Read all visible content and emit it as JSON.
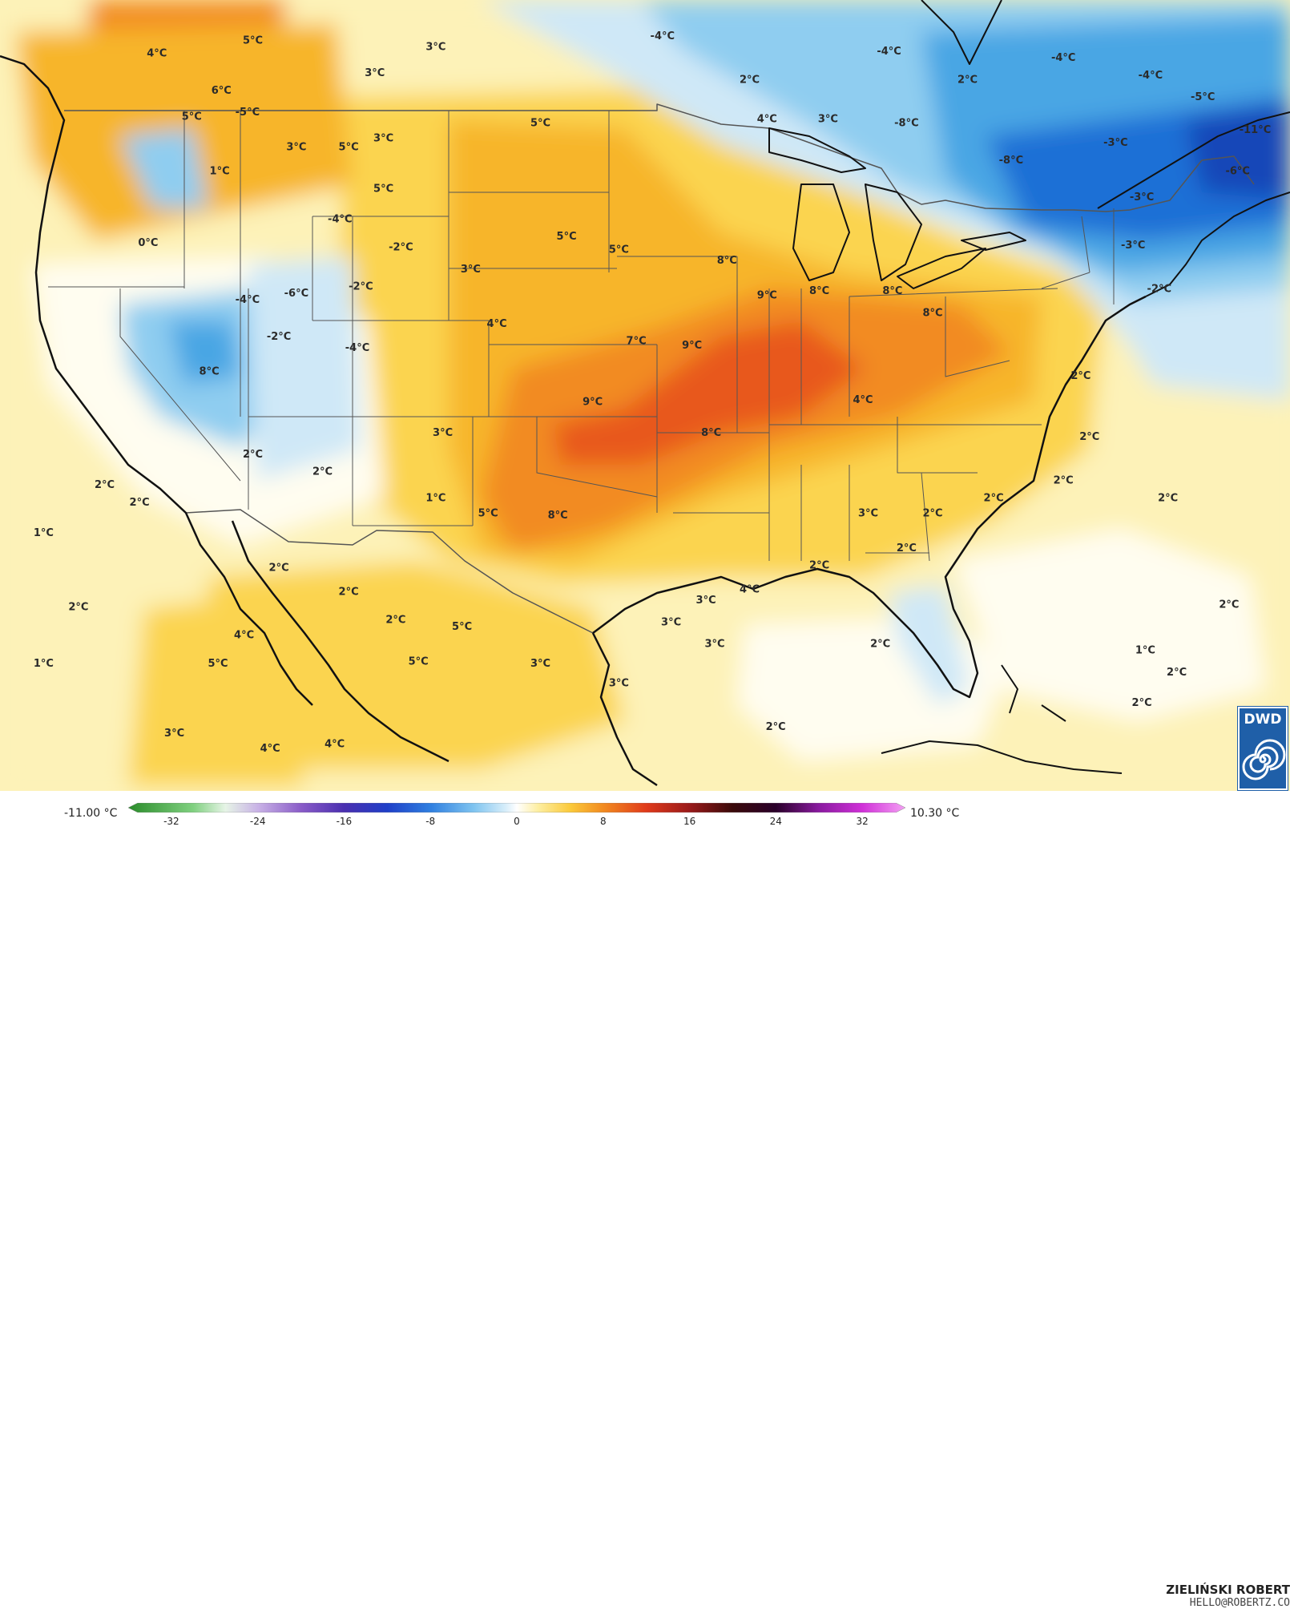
{
  "map": {
    "colors": {
      "base": "#fdf2b8",
      "pale": "#fffdf0",
      "light_yellow": "#fde88a",
      "yellow": "#fbd44f",
      "amber": "#f7b52c",
      "orange": "#f28b20",
      "red_orange": "#e8591a",
      "pale_blue": "#cfe8f7",
      "light_blue": "#8fcdf0",
      "blue": "#4aa6e4",
      "deep_blue": "#1f6fd6",
      "navy": "#1246b8",
      "coast": "#111111",
      "border": "#555555"
    },
    "labels": [
      {
        "text": "5°C",
        "lon": -117.5,
        "lat": 48.8
      },
      {
        "text": "4°C",
        "lon": -123.0,
        "lat": 48.2
      },
      {
        "text": "3°C",
        "lon": -107.0,
        "lat": 48.5
      },
      {
        "text": "-4°C",
        "lon": -94.0,
        "lat": 49.0
      },
      {
        "text": "-4°C",
        "lon": -81.0,
        "lat": 48.3
      },
      {
        "text": "-4°C",
        "lon": -71.0,
        "lat": 48.0
      },
      {
        "text": "3°C",
        "lon": -110.5,
        "lat": 47.3
      },
      {
        "text": "2°C",
        "lon": -89.0,
        "lat": 47.0
      },
      {
        "text": "2°C",
        "lon": -76.5,
        "lat": 47.0
      },
      {
        "text": "-4°C",
        "lon": -66.0,
        "lat": 47.2
      },
      {
        "text": "-5°C",
        "lon": -63.0,
        "lat": 46.2
      },
      {
        "text": "6°C",
        "lon": -119.3,
        "lat": 46.5
      },
      {
        "text": "5°C",
        "lon": -121.0,
        "lat": 45.3
      },
      {
        "text": "-5°C",
        "lon": -117.8,
        "lat": 45.5
      },
      {
        "text": "5°C",
        "lon": -101.0,
        "lat": 45.0
      },
      {
        "text": "4°C",
        "lon": -88.0,
        "lat": 45.2
      },
      {
        "text": "3°C",
        "lon": -84.5,
        "lat": 45.2
      },
      {
        "text": "-8°C",
        "lon": -80.0,
        "lat": 45.0
      },
      {
        "text": "-11°C",
        "lon": -60.0,
        "lat": 44.7
      },
      {
        "text": "3°C",
        "lon": -110.0,
        "lat": 44.3
      },
      {
        "text": "3°C",
        "lon": -115.0,
        "lat": 43.9
      },
      {
        "text": "5°C",
        "lon": -112.0,
        "lat": 43.9
      },
      {
        "text": "-8°C",
        "lon": -74.0,
        "lat": 43.3
      },
      {
        "text": "-3°C",
        "lon": -68.0,
        "lat": 44.1
      },
      {
        "text": "-6°C",
        "lon": -61.0,
        "lat": 42.8
      },
      {
        "text": "1°C",
        "lon": -119.4,
        "lat": 42.8
      },
      {
        "text": "5°C",
        "lon": -110.0,
        "lat": 42.0
      },
      {
        "text": "-3°C",
        "lon": -66.5,
        "lat": 41.6
      },
      {
        "text": "-4°C",
        "lon": -112.5,
        "lat": 40.6
      },
      {
        "text": "0°C",
        "lon": -123.5,
        "lat": 39.5
      },
      {
        "text": "5°C",
        "lon": -99.5,
        "lat": 39.8
      },
      {
        "text": "5°C",
        "lon": -96.5,
        "lat": 39.2
      },
      {
        "text": "-2°C",
        "lon": -109.0,
        "lat": 39.3
      },
      {
        "text": "8°C",
        "lon": -90.3,
        "lat": 38.7
      },
      {
        "text": "-3°C",
        "lon": -67.0,
        "lat": 39.4
      },
      {
        "text": "3°C",
        "lon": -105.0,
        "lat": 38.3
      },
      {
        "text": "-2°C",
        "lon": -111.3,
        "lat": 37.5
      },
      {
        "text": "-4°C",
        "lon": -117.8,
        "lat": 36.9
      },
      {
        "text": "-6°C",
        "lon": -115.0,
        "lat": 37.2
      },
      {
        "text": "9°C",
        "lon": -88.0,
        "lat": 37.1
      },
      {
        "text": "8°C",
        "lon": -85.0,
        "lat": 37.3
      },
      {
        "text": "8°C",
        "lon": -80.8,
        "lat": 37.3
      },
      {
        "text": "-2°C",
        "lon": -65.5,
        "lat": 37.4
      },
      {
        "text": "8°C",
        "lon": -78.5,
        "lat": 36.3
      },
      {
        "text": "4°C",
        "lon": -103.5,
        "lat": 35.8
      },
      {
        "text": "7°C",
        "lon": -95.5,
        "lat": 35.0
      },
      {
        "text": "9°C",
        "lon": -92.3,
        "lat": 34.8
      },
      {
        "text": "-2°C",
        "lon": -116.0,
        "lat": 35.2
      },
      {
        "text": "-4°C",
        "lon": -111.5,
        "lat": 34.7
      },
      {
        "text": "8°C",
        "lon": -120.0,
        "lat": 33.6
      },
      {
        "text": "2°C",
        "lon": -70.0,
        "lat": 33.4
      },
      {
        "text": "9°C",
        "lon": -98.0,
        "lat": 32.2
      },
      {
        "text": "4°C",
        "lon": -82.5,
        "lat": 32.3
      },
      {
        "text": "3°C",
        "lon": -106.6,
        "lat": 30.8
      },
      {
        "text": "8°C",
        "lon": -91.2,
        "lat": 30.8
      },
      {
        "text": "2°C",
        "lon": -69.5,
        "lat": 30.6
      },
      {
        "text": "2°C",
        "lon": -117.5,
        "lat": 29.8
      },
      {
        "text": "2°C",
        "lon": -113.5,
        "lat": 29.0
      },
      {
        "text": "2°C",
        "lon": -126.0,
        "lat": 28.4
      },
      {
        "text": "2°C",
        "lon": -124.0,
        "lat": 27.6
      },
      {
        "text": "1°C",
        "lon": -107.0,
        "lat": 27.8
      },
      {
        "text": "5°C",
        "lon": -104.0,
        "lat": 27.1
      },
      {
        "text": "8°C",
        "lon": -100.0,
        "lat": 27.0
      },
      {
        "text": "2°C",
        "lon": -71.0,
        "lat": 28.6
      },
      {
        "text": "2°C",
        "lon": -75.0,
        "lat": 27.8
      },
      {
        "text": "2°C",
        "lon": -78.5,
        "lat": 27.1
      },
      {
        "text": "2°C",
        "lon": -65.0,
        "lat": 27.8
      },
      {
        "text": "3°C",
        "lon": -82.2,
        "lat": 27.1
      },
      {
        "text": "1°C",
        "lon": -129.5,
        "lat": 26.2
      },
      {
        "text": "2°C",
        "lon": -116.0,
        "lat": 24.6
      },
      {
        "text": "2°C",
        "lon": -85.0,
        "lat": 24.7
      },
      {
        "text": "2°C",
        "lon": -80.0,
        "lat": 25.5
      },
      {
        "text": "4°C",
        "lon": -89.0,
        "lat": 23.6
      },
      {
        "text": "3°C",
        "lon": -91.5,
        "lat": 23.1
      },
      {
        "text": "2°C",
        "lon": -127.5,
        "lat": 22.8
      },
      {
        "text": "2°C",
        "lon": -112.0,
        "lat": 23.5
      },
      {
        "text": "2°C",
        "lon": -61.5,
        "lat": 22.9
      },
      {
        "text": "4°C",
        "lon": -118.0,
        "lat": 21.5
      },
      {
        "text": "2°C",
        "lon": -109.3,
        "lat": 22.2
      },
      {
        "text": "3°C",
        "lon": -93.5,
        "lat": 22.1
      },
      {
        "text": "3°C",
        "lon": -91.0,
        "lat": 21.1
      },
      {
        "text": "5°C",
        "lon": -105.5,
        "lat": 21.9
      },
      {
        "text": "2°C",
        "lon": -81.5,
        "lat": 21.1
      },
      {
        "text": "5°C",
        "lon": -119.5,
        "lat": 20.2
      },
      {
        "text": "5°C",
        "lon": -108.0,
        "lat": 20.3
      },
      {
        "text": "3°C",
        "lon": -101.0,
        "lat": 20.2
      },
      {
        "text": "1°C",
        "lon": -129.5,
        "lat": 20.2
      },
      {
        "text": "3°C",
        "lon": -96.5,
        "lat": 19.3
      },
      {
        "text": "1°C",
        "lon": -66.3,
        "lat": 20.8
      },
      {
        "text": "2°C",
        "lon": -64.5,
        "lat": 19.8
      },
      {
        "text": "2°C",
        "lon": -66.5,
        "lat": 18.4
      },
      {
        "text": "3°C",
        "lon": -122.0,
        "lat": 17.0
      },
      {
        "text": "2°C",
        "lon": -87.5,
        "lat": 17.3
      },
      {
        "text": "4°C",
        "lon": -116.5,
        "lat": 16.3
      },
      {
        "text": "4°C",
        "lon": -112.8,
        "lat": 16.5
      }
    ]
  },
  "legend": {
    "min_label": "-11.00 °C",
    "max_label": "10.30 °C",
    "ticks": [
      "-32",
      "-24",
      "-16",
      "-8",
      "0",
      "8",
      "16",
      "24",
      "32"
    ],
    "tick_values": [
      -32,
      -24,
      -16,
      -8,
      0,
      8,
      16,
      24,
      32
    ],
    "range": [
      -36,
      36
    ],
    "stops": [
      {
        "value": -36,
        "color": "#2a8c2a"
      },
      {
        "value": -30,
        "color": "#7fd07f"
      },
      {
        "value": -27,
        "color": "#e6f4e6"
      },
      {
        "value": -24,
        "color": "#c9b3e6"
      },
      {
        "value": -20,
        "color": "#8a5cc8"
      },
      {
        "value": -16,
        "color": "#4a2fb0"
      },
      {
        "value": -12,
        "color": "#1f3fc8"
      },
      {
        "value": -8,
        "color": "#2f7fe0"
      },
      {
        "value": -4,
        "color": "#7fc4f0"
      },
      {
        "value": -1,
        "color": "#d8eefa"
      },
      {
        "value": 0,
        "color": "#ffffff"
      },
      {
        "value": 2,
        "color": "#fdeea0"
      },
      {
        "value": 5,
        "color": "#fbc93a"
      },
      {
        "value": 8,
        "color": "#f28b20"
      },
      {
        "value": 12,
        "color": "#e03a1a"
      },
      {
        "value": 16,
        "color": "#9a1a1a"
      },
      {
        "value": 20,
        "color": "#3a0a0a"
      },
      {
        "value": 24,
        "color": "#2a002a"
      },
      {
        "value": 28,
        "color": "#8a1aa0"
      },
      {
        "value": 32,
        "color": "#d030d8"
      },
      {
        "value": 36,
        "color": "#f4a0f4"
      }
    ]
  },
  "credit": {
    "name": "ZIELIŃSKI ROBERT",
    "email": "HELLO@ROBERTZ.CO"
  },
  "logo": {
    "text": "DWD",
    "icon": "spiral-icon",
    "color": "#1f5fa8"
  }
}
